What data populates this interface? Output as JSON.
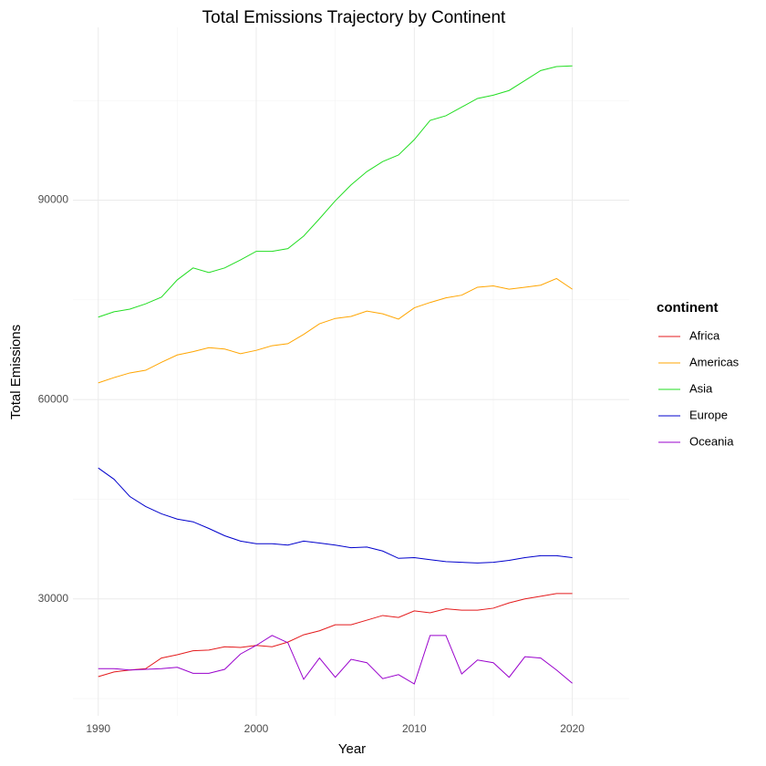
{
  "chart_data": {
    "type": "line",
    "title": "Total Emissions Trajectory by Continent",
    "x_label": "Year",
    "y_label": "Total Emissions",
    "legend_title": "continent",
    "legend_position": "right",
    "grid": true,
    "x": [
      1990,
      1991,
      1992,
      1993,
      1994,
      1995,
      1996,
      1997,
      1998,
      1999,
      2000,
      2001,
      2002,
      2003,
      2004,
      2005,
      2006,
      2007,
      2008,
      2009,
      2010,
      2011,
      2012,
      2013,
      2014,
      2015,
      2016,
      2017,
      2018,
      2019,
      2020
    ],
    "xlim": [
      1988.4,
      2023.6
    ],
    "xticks": [
      1990,
      2000,
      2010,
      2020
    ],
    "ylim": [
      12400,
      116000
    ],
    "yticks": [
      30000,
      60000,
      90000
    ],
    "series": [
      {
        "name": "Africa",
        "color": "#e41a1c",
        "values": [
          18300,
          19000,
          19300,
          19500,
          21100,
          21600,
          22200,
          22300,
          22800,
          22700,
          23000,
          22800,
          23500,
          24600,
          25200,
          26100,
          26100,
          26800,
          27500,
          27200,
          28200,
          27900,
          28500,
          28300,
          28300,
          28600,
          29400,
          30000,
          30400,
          30800,
          30800
        ]
      },
      {
        "name": "Americas",
        "color": "#ffa500",
        "values": [
          62500,
          63300,
          64000,
          64400,
          65600,
          66700,
          67200,
          67800,
          67600,
          66900,
          67400,
          68100,
          68400,
          69800,
          71400,
          72200,
          72500,
          73300,
          72900,
          72100,
          73800,
          74600,
          75300,
          75700,
          76900,
          77100,
          76600,
          76900,
          77200,
          78200,
          76600
        ]
      },
      {
        "name": "Asia",
        "color": "#22dd22",
        "values": [
          72400,
          73200,
          73600,
          74400,
          75400,
          78000,
          79800,
          79100,
          79800,
          81000,
          82300,
          82300,
          82700,
          84600,
          87200,
          89900,
          92300,
          94300,
          95800,
          96800,
          99100,
          102000,
          102700,
          104000,
          105300,
          105800,
          106500,
          108000,
          109500,
          110100,
          110200
        ]
      },
      {
        "name": "Europe",
        "color": "#0000cc",
        "values": [
          49700,
          48000,
          45400,
          43900,
          42800,
          42000,
          41600,
          40600,
          39500,
          38700,
          38300,
          38300,
          38100,
          38700,
          38400,
          38100,
          37700,
          37800,
          37200,
          36100,
          36200,
          35900,
          35600,
          35500,
          35400,
          35500,
          35800,
          36200,
          36500,
          36500,
          36200
        ]
      },
      {
        "name": "Oceania",
        "color": "#9900cc",
        "values": [
          19500,
          19500,
          19300,
          19400,
          19500,
          19700,
          18800,
          18800,
          19400,
          21700,
          23000,
          24500,
          23400,
          17900,
          21100,
          18200,
          20900,
          20400,
          18000,
          18600,
          17200,
          24500,
          24500,
          18700,
          20800,
          20400,
          18200,
          21300,
          21100,
          19300,
          17300
        ]
      }
    ]
  }
}
